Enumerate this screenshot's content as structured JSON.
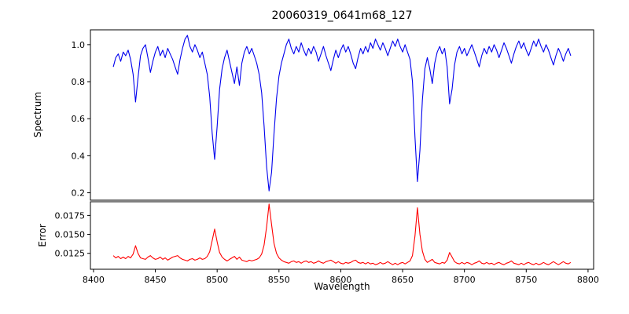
{
  "chart_data": {
    "type": "line",
    "title": "20060319_0641m68_127",
    "xlabel": "Wavelength",
    "x_start": 8416,
    "x_step": 2,
    "n_points": 186,
    "xlim": [
      8397.5,
      8804.5
    ],
    "xticks": [
      8400,
      8450,
      8500,
      8550,
      8600,
      8650,
      8700,
      8750,
      8800
    ],
    "grid": false,
    "legend": "none",
    "absorption_features_wavelengths": [
      8434,
      8498,
      8542,
      8662,
      8688
    ],
    "panels": [
      {
        "ylabel": "Spectrum",
        "color": "#0000ee",
        "ylim": [
          0.16,
          1.08
        ],
        "yticks": [
          0.2,
          0.4,
          0.6,
          0.8,
          1.0
        ],
        "ytick_labels": [
          "0.2",
          "0.4",
          "0.6",
          "0.8",
          "1.0"
        ],
        "values": [
          0.88,
          0.93,
          0.95,
          0.91,
          0.96,
          0.94,
          0.97,
          0.92,
          0.84,
          0.69,
          0.82,
          0.94,
          0.98,
          1.0,
          0.93,
          0.85,
          0.91,
          0.96,
          0.99,
          0.94,
          0.97,
          0.93,
          0.98,
          0.95,
          0.92,
          0.88,
          0.84,
          0.92,
          0.98,
          1.03,
          1.05,
          0.99,
          0.96,
          1.0,
          0.97,
          0.93,
          0.96,
          0.9,
          0.84,
          0.72,
          0.52,
          0.38,
          0.56,
          0.76,
          0.87,
          0.93,
          0.97,
          0.91,
          0.85,
          0.79,
          0.88,
          0.78,
          0.9,
          0.96,
          0.99,
          0.95,
          0.98,
          0.94,
          0.9,
          0.84,
          0.74,
          0.56,
          0.34,
          0.21,
          0.31,
          0.52,
          0.71,
          0.83,
          0.9,
          0.95,
          1.0,
          1.03,
          0.98,
          0.95,
          0.99,
          0.96,
          1.01,
          0.97,
          0.94,
          0.98,
          0.95,
          0.99,
          0.96,
          0.91,
          0.95,
          0.99,
          0.94,
          0.9,
          0.86,
          0.92,
          0.97,
          0.93,
          0.97,
          1.0,
          0.96,
          0.99,
          0.95,
          0.9,
          0.87,
          0.93,
          0.98,
          0.95,
          0.99,
          0.96,
          1.01,
          0.98,
          1.03,
          1.0,
          0.97,
          1.01,
          0.98,
          0.94,
          0.98,
          1.02,
          0.99,
          1.03,
          0.99,
          0.96,
          1.0,
          0.96,
          0.92,
          0.8,
          0.5,
          0.26,
          0.43,
          0.7,
          0.87,
          0.93,
          0.87,
          0.79,
          0.9,
          0.96,
          0.99,
          0.95,
          0.98,
          0.88,
          0.68,
          0.76,
          0.89,
          0.96,
          0.99,
          0.95,
          0.98,
          0.94,
          0.97,
          1.0,
          0.96,
          0.92,
          0.88,
          0.94,
          0.98,
          0.95,
          0.99,
          0.96,
          1.0,
          0.97,
          0.93,
          0.97,
          1.01,
          0.98,
          0.94,
          0.9,
          0.95,
          0.99,
          1.02,
          0.98,
          1.01,
          0.97,
          0.94,
          0.98,
          1.02,
          0.99,
          1.03,
          0.99,
          0.96,
          1.0,
          0.97,
          0.93,
          0.89,
          0.94,
          0.98,
          0.95,
          0.91,
          0.95,
          0.98,
          0.94
        ]
      },
      {
        "ylabel": "Error",
        "color": "#ff0000",
        "ylim": [
          0.0104,
          0.0193
        ],
        "yticks": [
          0.0125,
          0.015,
          0.0175
        ],
        "ytick_labels": [
          "0.0125",
          "0.0150",
          "0.0175"
        ],
        "values": [
          0.0122,
          0.0119,
          0.0121,
          0.0118,
          0.012,
          0.0118,
          0.0121,
          0.0119,
          0.0124,
          0.0135,
          0.0125,
          0.0119,
          0.0118,
          0.0117,
          0.012,
          0.0122,
          0.0119,
          0.0117,
          0.0118,
          0.012,
          0.0117,
          0.0119,
          0.0116,
          0.0118,
          0.012,
          0.0121,
          0.0122,
          0.0119,
          0.0117,
          0.0116,
          0.0115,
          0.0117,
          0.0118,
          0.0116,
          0.0117,
          0.0119,
          0.0117,
          0.0118,
          0.0121,
          0.0127,
          0.0142,
          0.0157,
          0.014,
          0.0126,
          0.012,
          0.0117,
          0.0115,
          0.0117,
          0.0119,
          0.0121,
          0.0117,
          0.012,
          0.0116,
          0.0115,
          0.0114,
          0.0116,
          0.0115,
          0.0116,
          0.0117,
          0.0119,
          0.0124,
          0.0136,
          0.016,
          0.019,
          0.0163,
          0.0138,
          0.0125,
          0.0119,
          0.0116,
          0.0114,
          0.0113,
          0.0112,
          0.0114,
          0.0115,
          0.0113,
          0.0114,
          0.0112,
          0.0114,
          0.0115,
          0.0113,
          0.0114,
          0.0112,
          0.0113,
          0.0115,
          0.0113,
          0.0112,
          0.0114,
          0.0115,
          0.0116,
          0.0114,
          0.0112,
          0.0114,
          0.0112,
          0.0111,
          0.0113,
          0.0112,
          0.0113,
          0.0115,
          0.0116,
          0.0113,
          0.0112,
          0.0113,
          0.0111,
          0.0113,
          0.0111,
          0.0112,
          0.011,
          0.0111,
          0.0113,
          0.0111,
          0.0112,
          0.0114,
          0.0112,
          0.011,
          0.0112,
          0.011,
          0.0112,
          0.0113,
          0.0111,
          0.0113,
          0.0115,
          0.0122,
          0.0148,
          0.0185,
          0.015,
          0.0128,
          0.0117,
          0.0113,
          0.0115,
          0.0117,
          0.0113,
          0.0112,
          0.0111,
          0.0113,
          0.0112,
          0.0116,
          0.0126,
          0.012,
          0.0114,
          0.0112,
          0.0111,
          0.0113,
          0.0111,
          0.0113,
          0.0112,
          0.011,
          0.0112,
          0.0113,
          0.0115,
          0.0112,
          0.0111,
          0.0113,
          0.0111,
          0.0112,
          0.011,
          0.0112,
          0.0113,
          0.0111,
          0.011,
          0.0112,
          0.0113,
          0.0115,
          0.0112,
          0.0111,
          0.011,
          0.0112,
          0.011,
          0.0112,
          0.0113,
          0.0111,
          0.011,
          0.0112,
          0.011,
          0.0111,
          0.0113,
          0.0111,
          0.011,
          0.0112,
          0.0114,
          0.0112,
          0.011,
          0.0112,
          0.0114,
          0.0112,
          0.0111,
          0.0113
        ]
      }
    ]
  }
}
